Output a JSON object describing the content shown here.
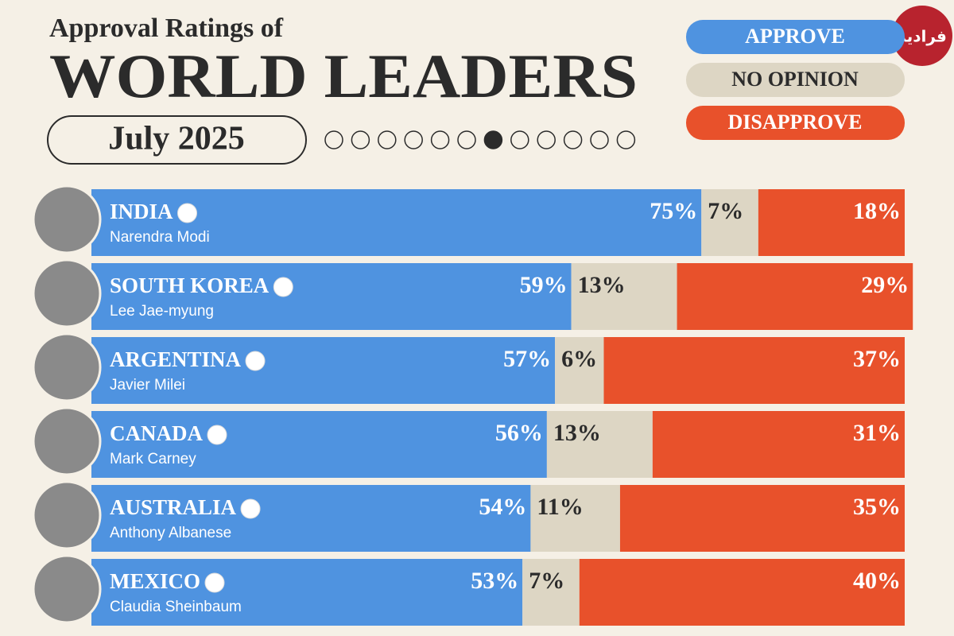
{
  "chart_data": {
    "type": "stacked-bar-horizontal",
    "title": "Approval Ratings of",
    "subtitle": "WORLD LEADERS",
    "date": "July 2025",
    "categories": [
      "INDIA",
      "SOUTH KOREA",
      "ARGENTINA",
      "CANADA",
      "AUSTRALIA",
      "MEXICO"
    ],
    "leaders": [
      "Narendra Modi",
      "Lee Jae-myung",
      "Javier Milei",
      "Mark Carney",
      "Anthony Albanese",
      "Claudia Sheinbaum"
    ],
    "xlim": [
      0,
      100
    ],
    "series": [
      {
        "name": "APPROVE",
        "color": "#4f93e0",
        "values": [
          75,
          59,
          57,
          56,
          54,
          53
        ],
        "value_labels": [
          "75%",
          "59%",
          "57%",
          "56%",
          "54%",
          "53%"
        ]
      },
      {
        "name": "NO OPINION",
        "color": "#ddd6c4",
        "values": [
          7,
          13,
          6,
          13,
          11,
          7
        ],
        "value_labels": [
          "7%",
          "13%",
          "6%",
          "13%",
          "11%",
          "7%"
        ]
      },
      {
        "name": "DISAPPROVE",
        "color": "#e8512b",
        "values": [
          18,
          29,
          37,
          31,
          35,
          40
        ],
        "value_labels": [
          "18%",
          "29%",
          "37%",
          "31%",
          "35%",
          "40%"
        ]
      }
    ],
    "watermark": "فرادید"
  }
}
